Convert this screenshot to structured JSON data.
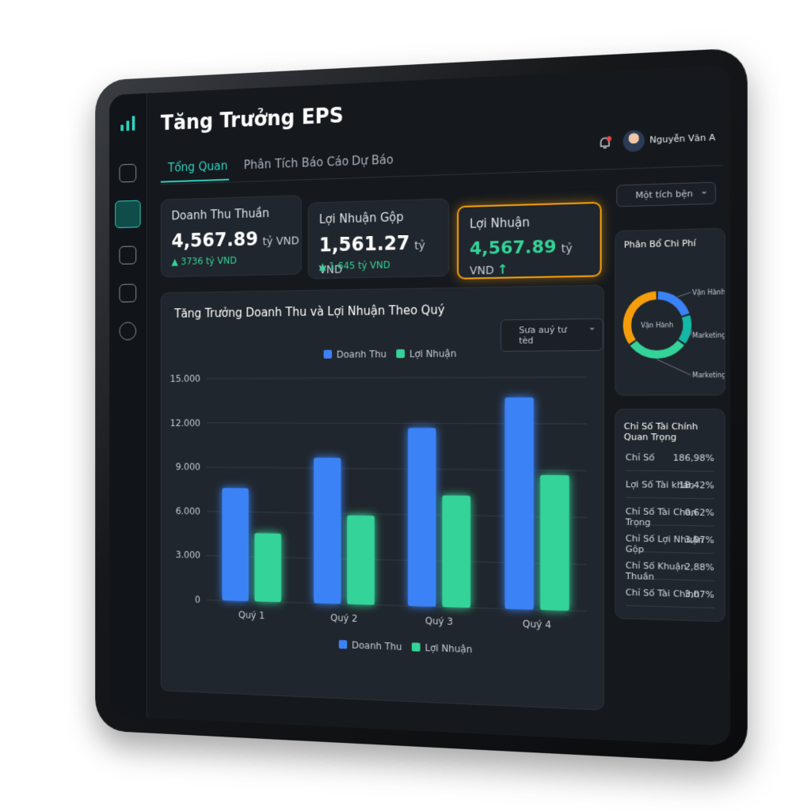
{
  "header": {
    "title": "Tăng Trưởng EPS",
    "tabs": [
      "Tổng Quan",
      "Phân Tích Báo Cáo",
      "Dự Báo"
    ],
    "user": "Nguyễn Văn A",
    "period_select": "Một tích bện"
  },
  "kpis": [
    {
      "title": "Doanh Thu Thuần",
      "value": "4,567.89",
      "unit": "tỷ VND",
      "delta": "3736 tỷ VND"
    },
    {
      "title": "Lợi Nhuận Gộp",
      "value": "1,561.27",
      "unit": "tỷ VND",
      "delta": "1.645 tỷ VND"
    },
    {
      "title": "Lợi Nhuận",
      "value": "4,567.89",
      "unit": "tỷ VND"
    }
  ],
  "chart_data": [
    {
      "type": "bar",
      "title": "Tăng Trưởng Doanh Thu và Lợi Nhuận Theo Quý",
      "filter": "Sưa auý tư tèd",
      "categories": [
        "Quý 1",
        "Quý 2",
        "Quý 3",
        "Quý 4"
      ],
      "series": [
        {
          "name": "Doanh Thu",
          "color": "#3b82f6",
          "values": [
            7600,
            9700,
            11700,
            13700
          ]
        },
        {
          "name": "Lợi Nhuận",
          "color": "#34d399",
          "values": [
            4600,
            5900,
            7300,
            8700
          ]
        }
      ],
      "ylim": [
        0,
        15000
      ],
      "yticks": [
        0,
        {
          "value": 3000,
          "label": "3.000"
        },
        {
          "value": 6000,
          "label": "6.000"
        },
        {
          "value": 9000,
          "label": "9.000"
        },
        {
          "value": 12000,
          "label": "12.000"
        },
        {
          "value": 15000,
          "label": "15.000"
        }
      ],
      "grid": true
    },
    {
      "type": "pie",
      "title": "Phân Bổ Chi Phí",
      "center_label": "Vận Hành",
      "categories": [
        "Vận Hành",
        "Marketing",
        "Marketing",
        null
      ],
      "values": [
        20,
        15,
        30,
        35
      ],
      "colors": [
        "#3b82f6",
        "#14b8a6",
        "#34d399",
        "#f59e0b"
      ]
    }
  ],
  "ratios": {
    "title": "Chỉ Số Tài Chính Quan Trọng",
    "rows": [
      [
        "Chỉ Số",
        "186,98%"
      ],
      [
        "Lợi Số Tài khán",
        "18,42%"
      ],
      [
        "Chỉ Số Tài Chan Trọng",
        "0,62%"
      ],
      [
        "Chỉ Số Lợi Nhuận Gộp",
        "3,07%"
      ],
      [
        "Chỉ Số Khuận Thuần",
        "2,88%"
      ],
      [
        "Chỉ Số Tài Chính",
        "3,07%"
      ]
    ]
  }
}
